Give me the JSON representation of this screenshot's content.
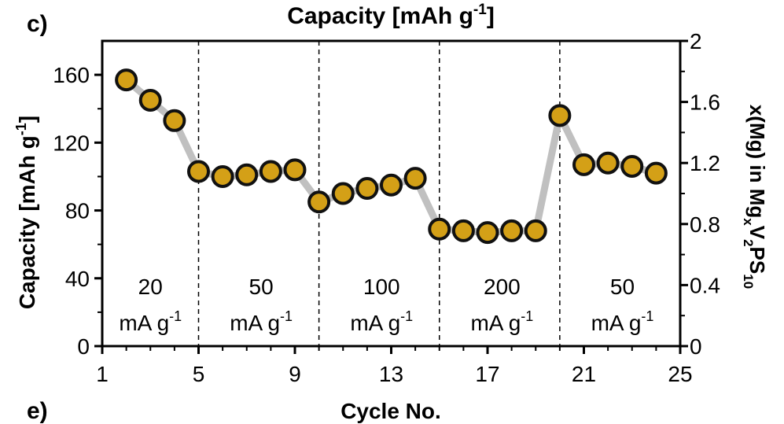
{
  "panel_labels": {
    "top": "c)",
    "bottom": "e)"
  },
  "chart_data": {
    "type": "scatter",
    "title": "Capacity [mAh g",
    "title_sup": "-1",
    "title_end": "]",
    "xlabel": "Cycle No.",
    "ylabel": "Capacity [mAh g",
    "ylabel_sup": "-1",
    "ylabel_end": "]",
    "y2label_parts": [
      "x(Mg) in Mg",
      "x",
      "V",
      "2",
      "PS",
      "10"
    ],
    "xlim": [
      1,
      25
    ],
    "ylim": [
      0,
      180
    ],
    "y2lim": [
      0,
      2
    ],
    "xticks": [
      "1",
      "5",
      "9",
      "13",
      "17",
      "21",
      "25"
    ],
    "yticks": [
      "0",
      "40",
      "80",
      "120",
      "160"
    ],
    "y2ticks": [
      "0",
      "0.4",
      "0.8",
      "1.2",
      "1.6",
      "2"
    ],
    "segment_boundaries": [
      5,
      10,
      15,
      20
    ],
    "segments": [
      {
        "rate": "20",
        "unit": "mA g",
        "unit_sup": "-1",
        "center": 3.0
      },
      {
        "rate": "50",
        "unit": "mA g",
        "unit_sup": "-1",
        "center": 7.6
      },
      {
        "rate": "100",
        "unit": "mA g",
        "unit_sup": "-1",
        "center": 12.6
      },
      {
        "rate": "200",
        "unit": "mA g",
        "unit_sup": "-1",
        "center": 17.6
      },
      {
        "rate": "50",
        "unit": "mA g",
        "unit_sup": "-1",
        "center": 22.6
      }
    ],
    "series": [
      {
        "x": [
          2,
          3,
          4,
          5,
          6,
          7,
          8,
          9,
          10,
          11,
          12,
          13,
          14,
          15,
          16,
          17,
          18,
          19,
          20,
          21,
          22,
          23,
          24
        ],
        "y": [
          157,
          145,
          133,
          103,
          100,
          101,
          103,
          104,
          85,
          90,
          93,
          95,
          99,
          69,
          68,
          67,
          68,
          68,
          136,
          107,
          108,
          106,
          102
        ]
      }
    ],
    "colors": {
      "marker_fill": "#d4a017",
      "marker_edge": "#111111",
      "line": "#c0c0c0"
    },
    "grid": false
  }
}
